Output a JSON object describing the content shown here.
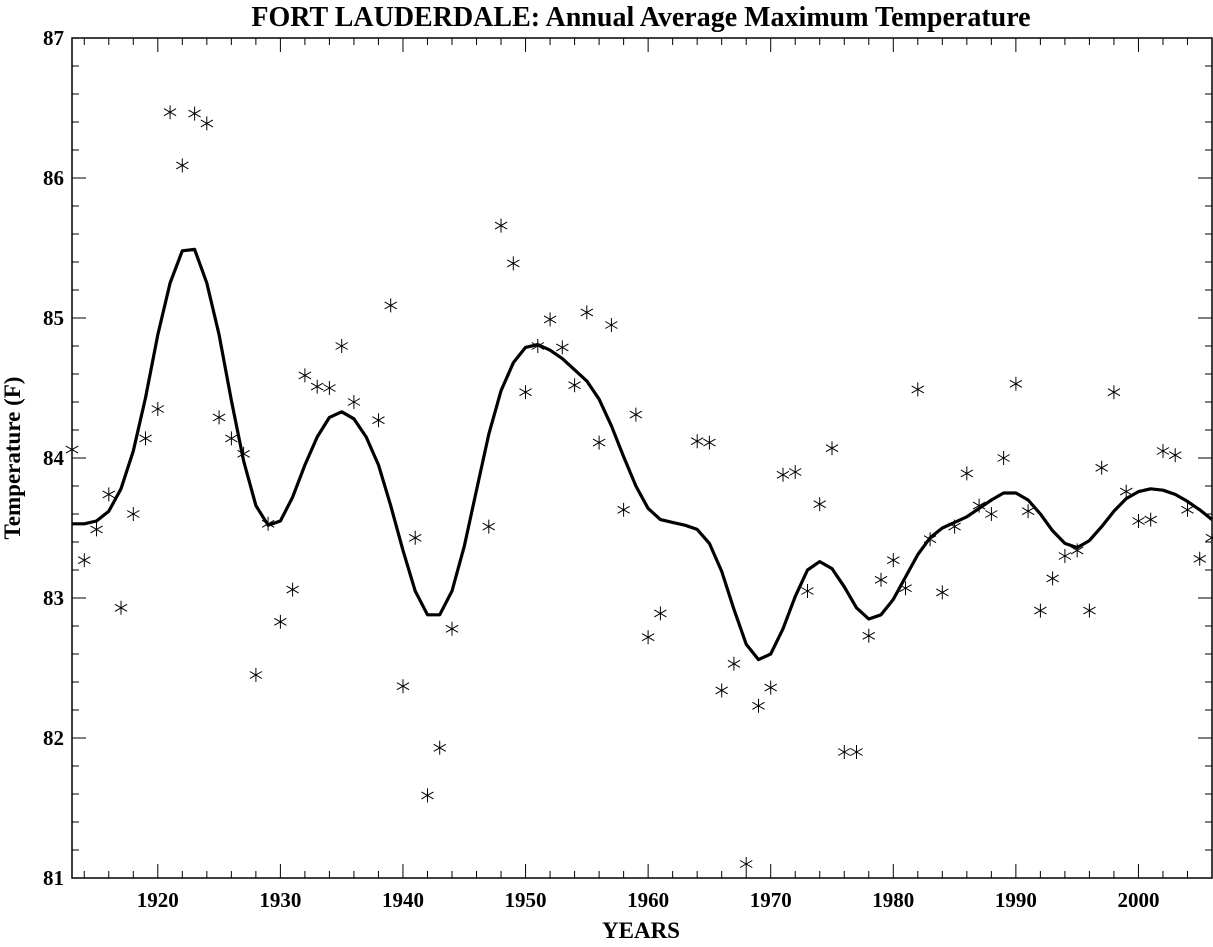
{
  "chart_data": {
    "type": "scatter",
    "title": "FORT LAUDERDALE: Annual Average Maximum Temperature",
    "xlabel": "YEARS",
    "ylabel": "Temperature (F)",
    "xlim": [
      1913,
      2006
    ],
    "ylim": [
      81,
      87
    ],
    "xticks": [
      1920,
      1930,
      1940,
      1950,
      1960,
      1970,
      1980,
      1990,
      2000
    ],
    "yticks": [
      81,
      82,
      83,
      84,
      85,
      86,
      87
    ],
    "grid": false,
    "series": [
      {
        "style": "markers",
        "marker": "asterisk",
        "x": [
          1913,
          1914,
          1915,
          1916,
          1917,
          1918,
          1919,
          1920,
          1921,
          1922,
          1923,
          1924,
          1925,
          1926,
          1927,
          1928,
          1929,
          1930,
          1931,
          1932,
          1933,
          1934,
          1935,
          1936,
          1938,
          1939,
          1940,
          1941,
          1942,
          1943,
          1944,
          1947,
          1948,
          1949,
          1950,
          1951,
          1952,
          1953,
          1954,
          1955,
          1956,
          1957,
          1958,
          1959,
          1960,
          1961,
          1964,
          1965,
          1966,
          1967,
          1968,
          1969,
          1970,
          1971,
          1972,
          1973,
          1974,
          1975,
          1976,
          1977,
          1978,
          1979,
          1980,
          1981,
          1982,
          1983,
          1984,
          1985,
          1986,
          1987,
          1988,
          1989,
          1990,
          1991,
          1992,
          1993,
          1994,
          1995,
          1996,
          1997,
          1998,
          1999,
          2000,
          2001,
          2002,
          2003,
          2004,
          2005,
          2006
        ],
        "y": [
          84.06,
          83.27,
          83.49,
          83.74,
          82.93,
          83.6,
          84.14,
          84.35,
          86.47,
          86.09,
          86.46,
          86.39,
          84.29,
          84.14,
          84.03,
          82.45,
          83.53,
          82.83,
          83.06,
          84.59,
          84.51,
          84.5,
          84.8,
          84.4,
          84.27,
          85.09,
          82.37,
          83.43,
          81.59,
          81.93,
          82.78,
          83.51,
          85.66,
          85.39,
          84.47,
          84.8,
          84.99,
          84.79,
          84.52,
          85.04,
          84.11,
          84.95,
          83.63,
          84.31,
          82.72,
          82.89,
          84.12,
          84.11,
          82.34,
          82.53,
          81.1,
          82.23,
          82.36,
          83.88,
          83.9,
          83.05,
          83.67,
          84.07,
          81.9,
          81.9,
          82.73,
          83.13,
          83.27,
          83.07,
          84.49,
          83.42,
          83.04,
          83.51,
          83.89,
          83.66,
          83.6,
          84,
          84.53,
          83.62,
          82.91,
          83.14,
          83.3,
          83.34,
          82.91,
          83.93,
          84.47,
          83.76,
          83.55,
          83.56,
          84.05,
          84.02,
          83.63,
          83.28,
          83.43
        ]
      },
      {
        "style": "line",
        "x": [
          1913,
          1914,
          1915,
          1916,
          1917,
          1918,
          1919,
          1920,
          1921,
          1922,
          1923,
          1924,
          1925,
          1926,
          1927,
          1928,
          1929,
          1930,
          1931,
          1932,
          1933,
          1934,
          1935,
          1936,
          1937,
          1938,
          1939,
          1940,
          1941,
          1942,
          1943,
          1944,
          1945,
          1946,
          1947,
          1948,
          1949,
          1950,
          1951,
          1952,
          1953,
          1954,
          1955,
          1956,
          1957,
          1958,
          1959,
          1960,
          1961,
          1962,
          1963,
          1964,
          1965,
          1966,
          1967,
          1968,
          1969,
          1970,
          1971,
          1972,
          1973,
          1974,
          1975,
          1976,
          1977,
          1978,
          1979,
          1980,
          1981,
          1982,
          1983,
          1984,
          1985,
          1986,
          1987,
          1988,
          1989,
          1990,
          1991,
          1992,
          1993,
          1994,
          1995,
          1996,
          1997,
          1998,
          1999,
          2000,
          2001,
          2002,
          2003,
          2004,
          2005,
          2006
        ],
        "y": [
          83.53,
          83.53,
          83.55,
          83.62,
          83.78,
          84.05,
          84.43,
          84.88,
          85.25,
          85.48,
          85.49,
          85.25,
          84.88,
          84.41,
          83.98,
          83.66,
          83.52,
          83.55,
          83.72,
          83.95,
          84.15,
          84.29,
          84.33,
          84.28,
          84.15,
          83.95,
          83.66,
          83.34,
          83.05,
          82.88,
          82.88,
          83.05,
          83.37,
          83.77,
          84.17,
          84.48,
          84.68,
          84.79,
          84.81,
          84.77,
          84.71,
          84.63,
          84.55,
          84.42,
          84.23,
          84.01,
          83.8,
          83.64,
          83.56,
          83.54,
          83.52,
          83.49,
          83.39,
          83.19,
          82.92,
          82.67,
          82.56,
          82.6,
          82.78,
          83.01,
          83.2,
          83.26,
          83.21,
          83.08,
          82.93,
          82.85,
          82.88,
          82.99,
          83.15,
          83.31,
          83.43,
          83.5,
          83.54,
          83.58,
          83.64,
          83.7,
          83.75,
          83.75,
          83.7,
          83.6,
          83.48,
          83.39,
          83.36,
          83.41,
          83.51,
          83.62,
          83.71,
          83.76,
          83.78,
          83.77,
          83.74,
          83.69,
          83.63,
          83.56
        ]
      }
    ]
  }
}
